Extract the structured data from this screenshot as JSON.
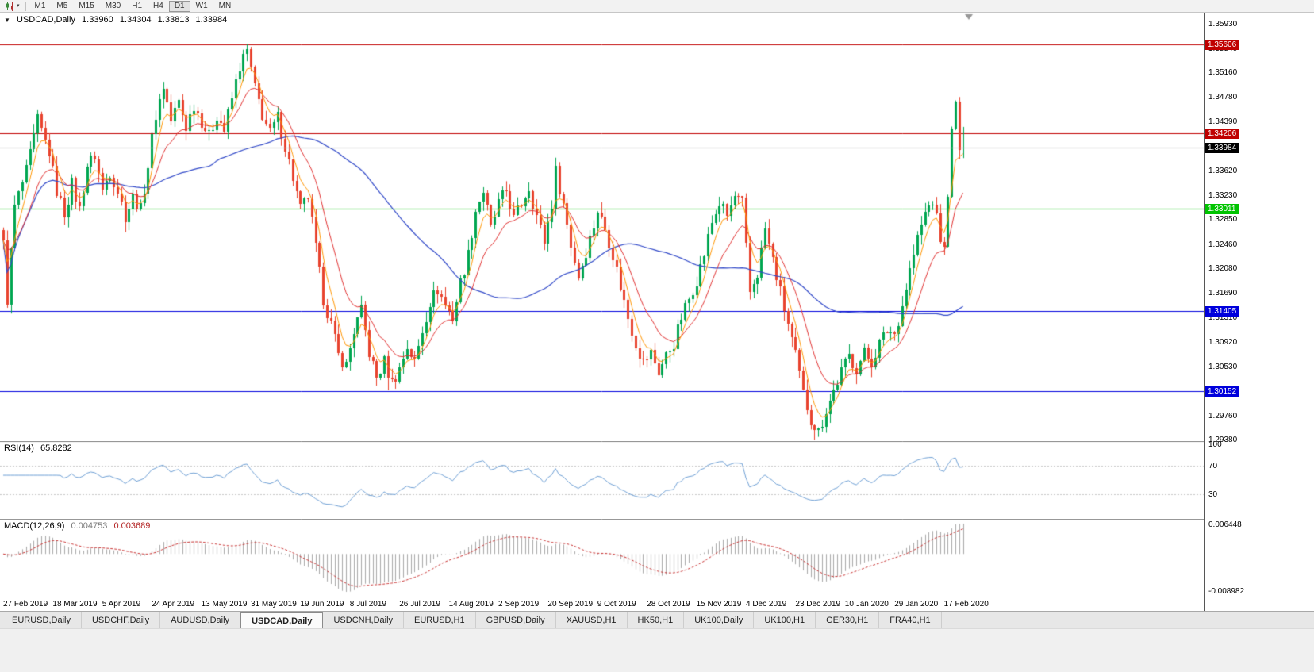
{
  "toolbar": {
    "timeframes": [
      {
        "label": "M1"
      },
      {
        "label": "M5"
      },
      {
        "label": "M15"
      },
      {
        "label": "M30"
      },
      {
        "label": "H1"
      },
      {
        "label": "H4"
      },
      {
        "label": "D1",
        "active": true
      },
      {
        "label": "W1"
      },
      {
        "label": "MN"
      }
    ],
    "active_timeframe": "D1"
  },
  "header": {
    "symbol": "USDCAD,Daily",
    "open": "1.33960",
    "high": "1.34304",
    "low": "1.33813",
    "close": "1.33984"
  },
  "price_axis": {
    "max": 1.361,
    "min": 1.2936,
    "ticks": [
      "1.35930",
      "1.35540",
      "1.35160",
      "1.34780",
      "1.34390",
      "1.34000",
      "1.33620",
      "1.33230",
      "1.32850",
      "1.32460",
      "1.32080",
      "1.31690",
      "1.31310",
      "1.30920",
      "1.30530",
      "1.30140",
      "1.29760",
      "1.29380"
    ]
  },
  "levels": [
    {
      "value": 1.35606,
      "label": "1.35606",
      "color": "#C00000",
      "text_color": "#FFFFFF",
      "kind": "resistance"
    },
    {
      "value": 1.34206,
      "label": "1.34206",
      "color": "#C00000",
      "text_color": "#FFFFFF",
      "kind": "resistance"
    },
    {
      "value": 1.33984,
      "label": "1.33984",
      "color": "#000000",
      "text_color": "#FFFFFF",
      "line_color": "#B4B4B4",
      "kind": "current-price"
    },
    {
      "value": 1.33011,
      "label": "1.33011",
      "color": "#00C400",
      "text_color": "#FFFFFF",
      "kind": "pivot"
    },
    {
      "value": 1.31405,
      "label": "1.31405",
      "color": "#0000DC",
      "text_color": "#FFFFFF",
      "kind": "support"
    },
    {
      "value": 1.30152,
      "label": "1.30152",
      "color": "#0000DC",
      "text_color": "#FFFFFF",
      "kind": "support"
    }
  ],
  "date_axis": [
    "27 Feb 2019",
    "18 Mar 2019",
    "5 Apr 2019",
    "24 Apr 2019",
    "13 May 2019",
    "31 May 2019",
    "19 Jun 2019",
    "8 Jul 2019",
    "26 Jul 2019",
    "14 Aug 2019",
    "2 Sep 2019",
    "20 Sep 2019",
    "9 Oct 2019",
    "28 Oct 2019",
    "15 Nov 2019",
    "4 Dec 2019",
    "23 Dec 2019",
    "10 Jan 2020",
    "29 Jan 2020",
    "17 Feb 2020"
  ],
  "rsi": {
    "name": "RSI(14)",
    "value_text": "65.8282",
    "current": 65.8282,
    "levels": [
      70,
      30
    ],
    "line_color": "#6E9FD4",
    "axis_labels": [
      {
        "text": "100",
        "value": 100
      },
      {
        "text": "70",
        "value": 70
      },
      {
        "text": "30",
        "value": 30
      }
    ]
  },
  "macd": {
    "name": "MACD(12,26,9)",
    "main_text": "0.004753",
    "signal_text": "0.003689",
    "current_main": 0.004753,
    "current_signal": 0.003689,
    "fast": 12,
    "slow": 26,
    "signal": 9,
    "hist_color": "#A8A8A8",
    "signal_color": "#C83232",
    "axis_labels": [
      {
        "text": "0.006448",
        "value": 0.006448
      },
      {
        "text": "-0.008982",
        "value": -0.008982
      }
    ]
  },
  "tabs": [
    {
      "label": "EURUSD,Daily"
    },
    {
      "label": "USDCHF,Daily"
    },
    {
      "label": "AUDUSD,Daily"
    },
    {
      "label": "USDCAD,Daily",
      "active": true
    },
    {
      "label": "USDCNH,Daily"
    },
    {
      "label": "EURUSD,H1"
    },
    {
      "label": "GBPUSD,Daily"
    },
    {
      "label": "XAUUSD,H1"
    },
    {
      "label": "HK50,H1"
    },
    {
      "label": "UK100,Daily"
    },
    {
      "label": "UK100,H1"
    },
    {
      "label": "GER30,H1"
    },
    {
      "label": "FRA40,H1"
    }
  ],
  "colors": {
    "candle_up": "#00A651",
    "candle_down": "#E8432E",
    "ma_fast": "#FF9500",
    "ma_medium": "#E03030",
    "ma_slow": "#3048C8"
  },
  "chart_data": {
    "type": "candlestick",
    "symbol": "USDCAD",
    "timeframe": "D1",
    "current_ohlc": {
      "open": 1.3396,
      "high": 1.34304,
      "low": 1.33813,
      "close": 1.33984
    },
    "visible_range": {
      "start": "27 Feb 2019",
      "end": "Feb 2020",
      "price_low": 1.2938,
      "price_high": 1.3561
    },
    "bars_total": 253,
    "bars_per_date_label": 13,
    "horizontal_levels": [
      1.35606,
      1.34206,
      1.33011,
      1.31405,
      1.30152
    ],
    "moving_averages": [
      {
        "name": "fast",
        "period": 5,
        "method": "ema",
        "color": "#FF9500"
      },
      {
        "name": "medium",
        "period": 13,
        "method": "ema",
        "color": "#E03030"
      },
      {
        "name": "slow",
        "period": 55,
        "method": "sma",
        "color": "#3048C8"
      }
    ],
    "rsi": {
      "period": 14,
      "current": 65.8282
    },
    "macd": {
      "fast": 12,
      "slow": 26,
      "signal": 9,
      "current_main": 0.004753,
      "current_signal": 0.003689
    },
    "close_anchors": [
      [
        0,
        1.3245
      ],
      [
        1,
        1.316
      ],
      [
        3,
        1.3305
      ],
      [
        6,
        1.336
      ],
      [
        9,
        1.344
      ],
      [
        12,
        1.339
      ],
      [
        14,
        1.333
      ],
      [
        16,
        1.3295
      ],
      [
        18,
        1.334
      ],
      [
        20,
        1.33
      ],
      [
        22,
        1.337
      ],
      [
        24,
        1.3385
      ],
      [
        26,
        1.333
      ],
      [
        28,
        1.336
      ],
      [
        30,
        1.333
      ],
      [
        32,
        1.329
      ],
      [
        34,
        1.332
      ],
      [
        36,
        1.33
      ],
      [
        38,
        1.337
      ],
      [
        40,
        1.345
      ],
      [
        42,
        1.3495
      ],
      [
        44,
        1.344
      ],
      [
        46,
        1.347
      ],
      [
        48,
        1.343
      ],
      [
        50,
        1.3465
      ],
      [
        52,
        1.344
      ],
      [
        54,
        1.3415
      ],
      [
        56,
        1.345
      ],
      [
        58,
        1.3425
      ],
      [
        60,
        1.3475
      ],
      [
        62,
        1.3525
      ],
      [
        64,
        1.3552
      ],
      [
        66,
        1.349
      ],
      [
        68,
        1.345
      ],
      [
        70,
        1.342
      ],
      [
        72,
        1.3445
      ],
      [
        74,
        1.34
      ],
      [
        76,
        1.335
      ],
      [
        78,
        1.33
      ],
      [
        80,
        1.332
      ],
      [
        82,
        1.324
      ],
      [
        84,
        1.316
      ],
      [
        86,
        1.312
      ],
      [
        88,
        1.307
      ],
      [
        90,
        1.3055
      ],
      [
        92,
        1.311
      ],
      [
        94,
        1.314
      ],
      [
        96,
        1.3075
      ],
      [
        98,
        1.3035
      ],
      [
        100,
        1.306
      ],
      [
        102,
        1.3028
      ],
      [
        104,
        1.305
      ],
      [
        106,
        1.3085
      ],
      [
        108,
        1.306
      ],
      [
        110,
        1.311
      ],
      [
        112,
        1.3155
      ],
      [
        114,
        1.3175
      ],
      [
        116,
        1.315
      ],
      [
        118,
        1.313
      ],
      [
        120,
        1.3185
      ],
      [
        122,
        1.323
      ],
      [
        124,
        1.33
      ],
      [
        126,
        1.333
      ],
      [
        128,
        1.327
      ],
      [
        130,
        1.331
      ],
      [
        132,
        1.333
      ],
      [
        134,
        1.3285
      ],
      [
        136,
        1.331
      ],
      [
        138,
        1.3335
      ],
      [
        140,
        1.329
      ],
      [
        142,
        1.325
      ],
      [
        144,
        1.331
      ],
      [
        145,
        1.336
      ],
      [
        147,
        1.331
      ],
      [
        149,
        1.3245
      ],
      [
        151,
        1.3195
      ],
      [
        153,
        1.3235
      ],
      [
        155,
        1.3275
      ],
      [
        156,
        1.33
      ],
      [
        158,
        1.327
      ],
      [
        160,
        1.323
      ],
      [
        162,
        1.318
      ],
      [
        164,
        1.313
      ],
      [
        166,
        1.309
      ],
      [
        168,
        1.306
      ],
      [
        170,
        1.3075
      ],
      [
        172,
        1.3045
      ],
      [
        174,
        1.307
      ],
      [
        176,
        1.309
      ],
      [
        178,
        1.313
      ],
      [
        180,
        1.316
      ],
      [
        182,
        1.319
      ],
      [
        184,
        1.323
      ],
      [
        186,
        1.328
      ],
      [
        188,
        1.331
      ],
      [
        190,
        1.329
      ],
      [
        192,
        1.332
      ],
      [
        194,
        1.331
      ],
      [
        196,
        1.317
      ],
      [
        198,
        1.32
      ],
      [
        200,
        1.327
      ],
      [
        202,
        1.322
      ],
      [
        204,
        1.317
      ],
      [
        206,
        1.312
      ],
      [
        208,
        1.307
      ],
      [
        210,
        1.301
      ],
      [
        212,
        1.297
      ],
      [
        214,
        1.295
      ],
      [
        216,
        1.2985
      ],
      [
        218,
        1.3015
      ],
      [
        220,
        1.3045
      ],
      [
        222,
        1.307
      ],
      [
        224,
        1.305
      ],
      [
        226,
        1.3075
      ],
      [
        228,
        1.306
      ],
      [
        230,
        1.309
      ],
      [
        232,
        1.311
      ],
      [
        234,
        1.3105
      ],
      [
        236,
        1.315
      ],
      [
        238,
        1.3205
      ],
      [
        240,
        1.3255
      ],
      [
        242,
        1.3295
      ],
      [
        244,
        1.3315
      ],
      [
        246,
        1.3255
      ],
      [
        247,
        1.3235
      ],
      [
        248,
        1.333
      ],
      [
        249,
        1.342
      ],
      [
        250,
        1.3465
      ],
      [
        251,
        1.3396
      ],
      [
        252,
        1.33984
      ]
    ],
    "overrides": {
      "last_bar": {
        "open": 1.3396,
        "high": 1.34304,
        "low": 1.33813,
        "close": 1.33984
      },
      "extremes": [
        [
          64,
          "high",
          1.35606
        ],
        [
          101,
          "low",
          1.3016
        ],
        [
          213,
          "low",
          1.2938
        ],
        [
          250,
          "high",
          1.3472
        ]
      ]
    }
  }
}
